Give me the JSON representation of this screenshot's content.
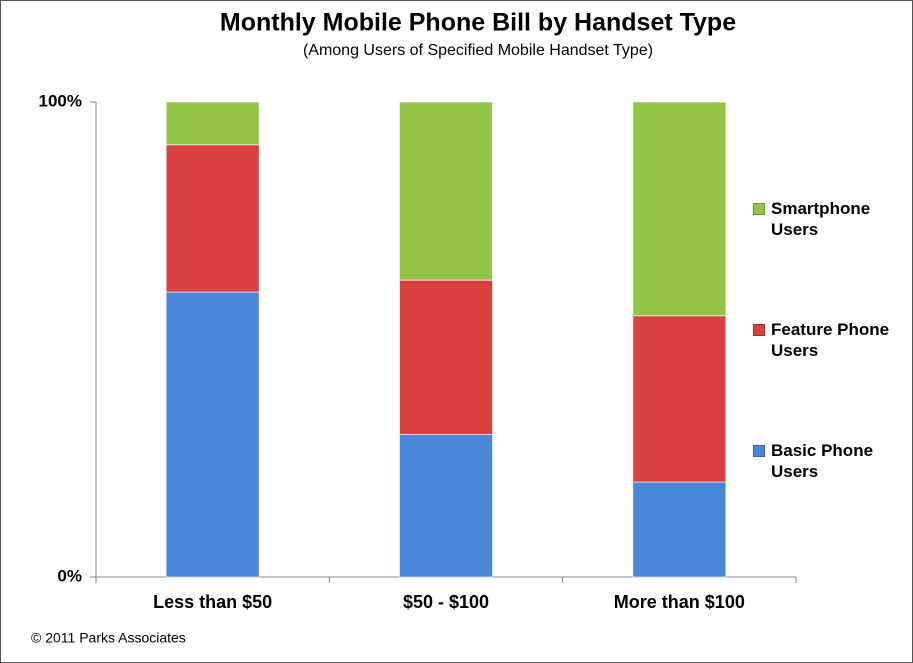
{
  "chart_data": {
    "type": "stacked_bar",
    "title": "Monthly Mobile Phone Bill by Handset Type",
    "subtitle": "(Among Users of Specified Mobile Handset Type)",
    "categories": [
      "Less than $50",
      "$50 - $100",
      "More than $100"
    ],
    "series": [
      {
        "name": "Basic Phone Users",
        "color": "#4a86d8",
        "values": [
          60,
          30,
          20
        ]
      },
      {
        "name": "Feature Phone Users",
        "color": "#d94040",
        "values": [
          31,
          32.5,
          35
        ]
      },
      {
        "name": "Smartphone Users",
        "color": "#92c447",
        "values": [
          9,
          37.5,
          45
        ]
      }
    ],
    "ylim": [
      0,
      100
    ],
    "yticks": [
      {
        "value": 0,
        "label": "0%"
      },
      {
        "value": 100,
        "label": "100%"
      }
    ],
    "grid": false,
    "legend": "right",
    "source": "© 2011 Parks Associates"
  }
}
